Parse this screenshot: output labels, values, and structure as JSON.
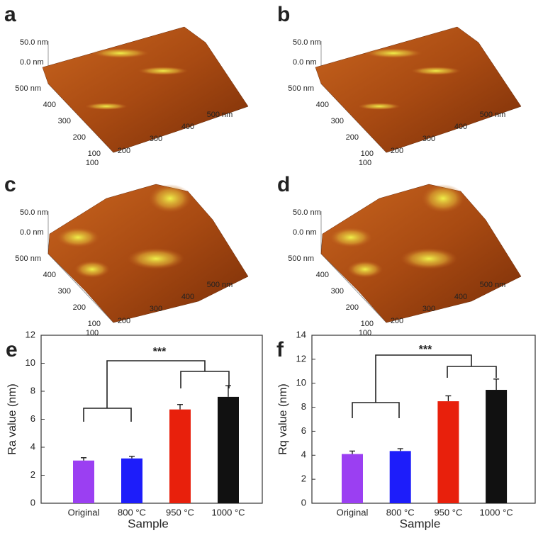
{
  "afm_panels": [
    {
      "label": "a",
      "z_labels": [
        "50.0 nm",
        "0.0 nm"
      ],
      "y_labels": [
        "500 nm",
        400,
        300,
        200,
        100
      ],
      "x_labels": [
        100,
        200,
        300,
        400,
        "500 nm"
      ]
    },
    {
      "label": "b",
      "z_labels": [
        "50.0 nm",
        "0.0 nm"
      ],
      "y_labels": [
        "500 nm",
        400,
        300,
        200,
        100
      ],
      "x_labels": [
        100,
        200,
        300,
        400,
        "500 nm"
      ]
    },
    {
      "label": "c",
      "z_labels": [
        "50.0 nm",
        "0.0 nm"
      ],
      "y_labels": [
        "500 nm",
        400,
        300,
        200,
        100
      ],
      "x_labels": [
        100,
        200,
        300,
        400,
        "500 nm"
      ]
    },
    {
      "label": "d",
      "z_labels": [
        "50.0 nm",
        "0.0 nm"
      ],
      "y_labels": [
        "500 nm",
        400,
        300,
        200,
        100
      ],
      "x_labels": [
        100,
        200,
        300,
        400,
        "500 nm"
      ]
    }
  ],
  "chart_data": [
    {
      "type": "bar",
      "panel_label": "e",
      "categories": [
        "Original",
        "800 °C",
        "950 °C",
        "1000 °C"
      ],
      "values": [
        3.05,
        3.2,
        6.7,
        7.6
      ],
      "errors": [
        0.2,
        0.15,
        0.35,
        0.8
      ],
      "colors": [
        "#9b3ff2",
        "#1d1dfa",
        "#e8200c",
        "#111111"
      ],
      "ylim": [
        0,
        12
      ],
      "yticks": [
        0,
        2,
        4,
        6,
        8,
        10,
        12
      ],
      "xlabel": "Sample",
      "ylabel": "Ra value (nm)",
      "annotation": "***"
    },
    {
      "type": "bar",
      "panel_label": "f",
      "categories": [
        "Original",
        "800 °C",
        "950 °C",
        "1000 °C"
      ],
      "values": [
        4.1,
        4.35,
        8.5,
        9.45
      ],
      "errors": [
        0.25,
        0.2,
        0.45,
        0.9
      ],
      "colors": [
        "#9b3ff2",
        "#1d1dfa",
        "#e8200c",
        "#111111"
      ],
      "ylim": [
        0,
        14
      ],
      "yticks": [
        0,
        2,
        4,
        6,
        8,
        10,
        12,
        14
      ],
      "xlabel": "Sample",
      "ylabel": "Rq value (nm)",
      "annotation": "***"
    }
  ]
}
